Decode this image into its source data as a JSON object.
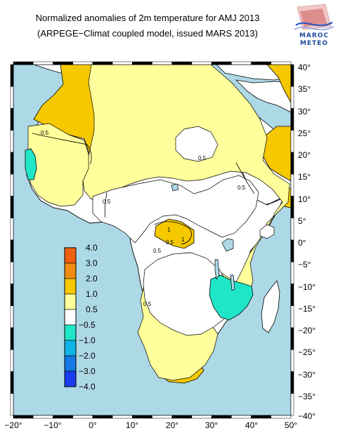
{
  "title_line1": "Normalized anomalies of 2m temperature for AMJ 2013",
  "title_line2": "(ARPEGE−Climat coupled model, issued MARS 2013)",
  "logo": {
    "line1": "MAROC",
    "line2": "METEO",
    "icon": "maroc-meteo-logo"
  },
  "map": {
    "projection": "equirectangular",
    "ocean_color": "#add8e6",
    "land_color": "#ffffff",
    "lon_range": [
      -20,
      50
    ],
    "lat_range": [
      -40,
      40
    ],
    "lon_ticks": [
      "−20°",
      "−10°",
      "0°",
      "10°",
      "20°",
      "30°",
      "40°",
      "50°"
    ],
    "lat_ticks": [
      "40°",
      "35°",
      "30°",
      "25°",
      "20°",
      "15°",
      "10°",
      "5°",
      "0°",
      "−5°",
      "−10°",
      "−15°",
      "−20°",
      "−25°",
      "−30°",
      "−35°",
      "−40°"
    ],
    "contour_labels": [
      "0.5",
      "0.5",
      "0.5",
      "0.5",
      "0.5",
      "0.5",
      "0.5",
      "1",
      "1"
    ]
  },
  "legend": {
    "labels": [
      "4.0",
      "3.0",
      "2.0",
      "1.0",
      "0.5",
      "−0.5",
      "−1.0",
      "−2.0",
      "−3.0",
      "−4.0"
    ],
    "colors": [
      "#f06010",
      "#f08c10",
      "#f5c800",
      "#ffff9b",
      "#ffffff",
      "#20e6c8",
      "#10b4e6",
      "#1478e6",
      "#1a3cf0"
    ]
  }
}
